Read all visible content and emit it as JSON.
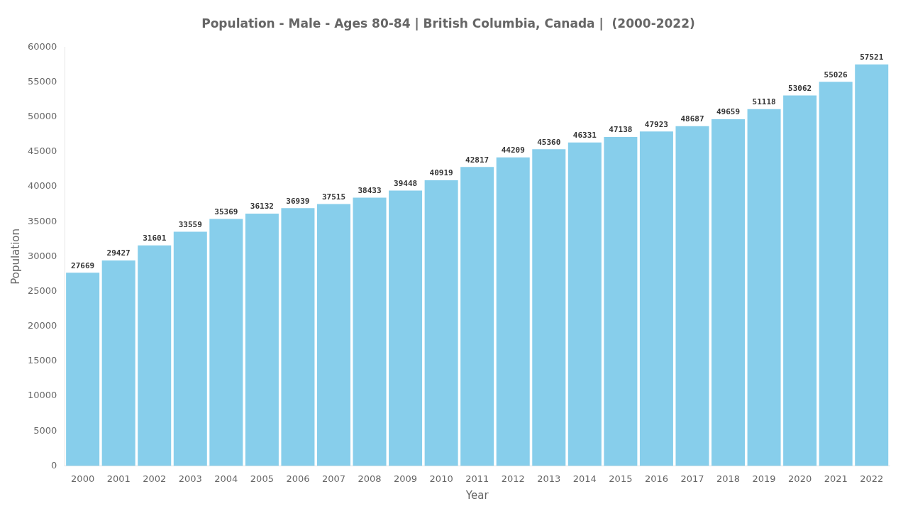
{
  "chart_data": {
    "type": "bar",
    "title": "Population - Male - Ages 80-84 | British Columbia, Canada |  (2000-2022)",
    "x_label": "Year",
    "y_label": "Population",
    "categories": [
      "2000",
      "2001",
      "2002",
      "2003",
      "2004",
      "2005",
      "2006",
      "2007",
      "2008",
      "2009",
      "2010",
      "2011",
      "2012",
      "2013",
      "2014",
      "2015",
      "2016",
      "2017",
      "2018",
      "2019",
      "2020",
      "2021",
      "2022"
    ],
    "values": [
      27669,
      29427,
      31601,
      33559,
      35369,
      36132,
      36939,
      37515,
      38433,
      39448,
      40919,
      42817,
      44209,
      45360,
      46331,
      47138,
      47923,
      48687,
      49659,
      51118,
      53062,
      55026,
      57521
    ],
    "color": "#87CEEB",
    "ylim": [
      0,
      60000
    ],
    "yticks": [
      0,
      5000,
      10000,
      15000,
      20000,
      25000,
      30000,
      35000,
      40000,
      45000,
      50000,
      55000,
      60000
    ],
    "grid": false,
    "data_labels": true
  }
}
